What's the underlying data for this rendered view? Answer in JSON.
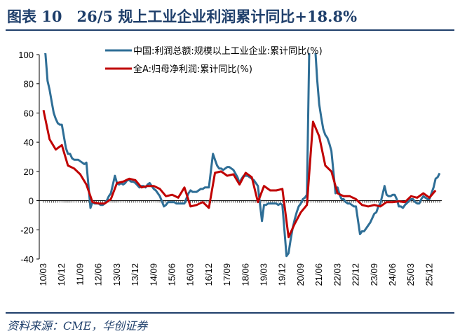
{
  "header": {
    "title": "图表 10　26/5 规上工业企业利润累计同比+18.8%"
  },
  "footer": {
    "source": "资料来源：CME，华创证券"
  },
  "chart_data": {
    "type": "line",
    "ylim": [
      -40,
      100
    ],
    "yticks": [
      -40,
      -20,
      0,
      20,
      40,
      60,
      80,
      100
    ],
    "grid": false,
    "legend_position": "top-center",
    "x_tick_labels": [
      "10/03",
      "10/12",
      "11/09",
      "12/06",
      "13/03",
      "13/12",
      "14/09",
      "15/06",
      "16/03",
      "16/12",
      "17/09",
      "18/06",
      "19/03",
      "19/12",
      "20/09",
      "21/06",
      "22/03",
      "22/12",
      "23/09",
      "24/06",
      "25/03",
      "25/12"
    ],
    "series": [
      {
        "name": "中国:利润总额:规模以上工业企业:累计同比(%)",
        "color": "#2e6e96",
        "points": [
          [
            "2010-03",
            110
          ],
          [
            "2010-04",
            100
          ],
          [
            "2010-05",
            82
          ],
          [
            "2010-06",
            76
          ],
          [
            "2010-07",
            68
          ],
          [
            "2010-08",
            60
          ],
          [
            "2010-09",
            56
          ],
          [
            "2010-10",
            53
          ],
          [
            "2010-11",
            52
          ],
          [
            "2010-12",
            52
          ],
          [
            "2011-02",
            36
          ],
          [
            "2011-03",
            32
          ],
          [
            "2011-04",
            32
          ],
          [
            "2011-05",
            29
          ],
          [
            "2011-06",
            28
          ],
          [
            "2011-07",
            28
          ],
          [
            "2011-08",
            28
          ],
          [
            "2011-09",
            27
          ],
          [
            "2011-10",
            26
          ],
          [
            "2011-11",
            25
          ],
          [
            "2011-12",
            26
          ],
          [
            "2012-02",
            -5
          ],
          [
            "2012-03",
            -1
          ],
          [
            "2012-04",
            -2
          ],
          [
            "2012-05",
            -2
          ],
          [
            "2012-06",
            -2
          ],
          [
            "2012-07",
            -3
          ],
          [
            "2012-08",
            -3
          ],
          [
            "2012-09",
            -2
          ],
          [
            "2012-10",
            0
          ],
          [
            "2012-11",
            3
          ],
          [
            "2012-12",
            5
          ],
          [
            "2013-02",
            17
          ],
          [
            "2013-03",
            12
          ],
          [
            "2013-04",
            11
          ],
          [
            "2013-05",
            12
          ],
          [
            "2013-06",
            11
          ],
          [
            "2013-07",
            12
          ],
          [
            "2013-08",
            14
          ],
          [
            "2013-09",
            14
          ],
          [
            "2013-10",
            13
          ],
          [
            "2013-11",
            13
          ],
          [
            "2013-12",
            12
          ],
          [
            "2014-02",
            9
          ],
          [
            "2014-03",
            10
          ],
          [
            "2014-04",
            10
          ],
          [
            "2014-05",
            9
          ],
          [
            "2014-06",
            11
          ],
          [
            "2014-07",
            12
          ],
          [
            "2014-08",
            10
          ],
          [
            "2014-09",
            8
          ],
          [
            "2014-10",
            7
          ],
          [
            "2014-11",
            5
          ],
          [
            "2014-12",
            3
          ],
          [
            "2015-02",
            -4
          ],
          [
            "2015-03",
            -3
          ],
          [
            "2015-04",
            -1
          ],
          [
            "2015-05",
            -1
          ],
          [
            "2015-06",
            -1
          ],
          [
            "2015-07",
            -1
          ],
          [
            "2015-08",
            -2
          ],
          [
            "2015-09",
            -2
          ],
          [
            "2015-10",
            -2
          ],
          [
            "2015-11",
            -2
          ],
          [
            "2015-12",
            -2
          ],
          [
            "2016-02",
            5
          ],
          [
            "2016-03",
            7
          ],
          [
            "2016-04",
            6
          ],
          [
            "2016-05",
            6
          ],
          [
            "2016-06",
            6
          ],
          [
            "2016-07",
            7
          ],
          [
            "2016-08",
            8
          ],
          [
            "2016-09",
            8
          ],
          [
            "2016-10",
            9
          ],
          [
            "2016-11",
            9
          ],
          [
            "2016-12",
            9
          ],
          [
            "2017-02",
            32
          ],
          [
            "2017-03",
            28
          ],
          [
            "2017-04",
            24
          ],
          [
            "2017-05",
            22
          ],
          [
            "2017-06",
            22
          ],
          [
            "2017-07",
            21
          ],
          [
            "2017-08",
            22
          ],
          [
            "2017-09",
            23
          ],
          [
            "2017-10",
            23
          ],
          [
            "2017-11",
            22
          ],
          [
            "2017-12",
            21
          ],
          [
            "2018-02",
            16
          ],
          [
            "2018-03",
            12
          ],
          [
            "2018-04",
            15
          ],
          [
            "2018-05",
            17
          ],
          [
            "2018-06",
            17
          ],
          [
            "2018-07",
            17
          ],
          [
            "2018-08",
            16
          ],
          [
            "2018-09",
            15
          ],
          [
            "2018-10",
            14
          ],
          [
            "2018-11",
            12
          ],
          [
            "2018-12",
            10
          ],
          [
            "2019-02",
            -14
          ],
          [
            "2019-03",
            -3
          ],
          [
            "2019-04",
            -3
          ],
          [
            "2019-05",
            -2
          ],
          [
            "2019-06",
            -2
          ],
          [
            "2019-07",
            -2
          ],
          [
            "2019-08",
            -2
          ],
          [
            "2019-09",
            -2
          ],
          [
            "2019-10",
            -3
          ],
          [
            "2019-11",
            -2
          ],
          [
            "2019-12",
            -3
          ],
          [
            "2020-02",
            -38
          ],
          [
            "2020-03",
            -36
          ],
          [
            "2020-04",
            -27
          ],
          [
            "2020-05",
            -19
          ],
          [
            "2020-06",
            -13
          ],
          [
            "2020-07",
            -8
          ],
          [
            "2020-08",
            -4
          ],
          [
            "2020-09",
            -2
          ],
          [
            "2020-10",
            1
          ],
          [
            "2020-11",
            2
          ],
          [
            "2020-12",
            4
          ],
          [
            "2021-02",
            178
          ],
          [
            "2021-03",
            137
          ],
          [
            "2021-04",
            106
          ],
          [
            "2021-05",
            83
          ],
          [
            "2021-06",
            66
          ],
          [
            "2021-07",
            57
          ],
          [
            "2021-08",
            49
          ],
          [
            "2021-09",
            45
          ],
          [
            "2021-10",
            43
          ],
          [
            "2021-11",
            39
          ],
          [
            "2021-12",
            34
          ],
          [
            "2022-02",
            5
          ],
          [
            "2022-03",
            9
          ],
          [
            "2022-04",
            4
          ],
          [
            "2022-05",
            1
          ],
          [
            "2022-06",
            1
          ],
          [
            "2022-07",
            -1
          ],
          [
            "2022-08",
            -2
          ],
          [
            "2022-09",
            -2
          ],
          [
            "2022-10",
            -3
          ],
          [
            "2022-11",
            -4
          ],
          [
            "2022-12",
            -4
          ],
          [
            "2023-02",
            -23
          ],
          [
            "2023-03",
            -21
          ],
          [
            "2023-04",
            -21
          ],
          [
            "2023-05",
            -19
          ],
          [
            "2023-06",
            -17
          ],
          [
            "2023-07",
            -15
          ],
          [
            "2023-08",
            -12
          ],
          [
            "2023-09",
            -9
          ],
          [
            "2023-10",
            -8
          ],
          [
            "2023-11",
            -4
          ],
          [
            "2023-12",
            -2
          ],
          [
            "2024-02",
            10
          ],
          [
            "2024-03",
            4
          ],
          [
            "2024-04",
            3
          ],
          [
            "2024-05",
            3
          ],
          [
            "2024-06",
            4
          ],
          [
            "2024-07",
            4
          ],
          [
            "2024-08",
            1
          ],
          [
            "2024-09",
            -4
          ],
          [
            "2024-10",
            -4
          ],
          [
            "2024-11",
            -5
          ],
          [
            "2024-12",
            -3
          ],
          [
            "2025-02",
            -0.3
          ],
          [
            "2025-03",
            1
          ],
          [
            "2025-04",
            1
          ],
          [
            "2025-05",
            -1
          ],
          [
            "2025-06",
            -2
          ],
          [
            "2025-07",
            -2
          ],
          [
            "2025-08",
            1
          ],
          [
            "2025-09",
            3
          ],
          [
            "2025-10",
            2
          ],
          [
            "2025-11",
            1
          ],
          [
            "2025-12",
            1
          ],
          [
            "2026-02",
            9
          ],
          [
            "2026-03",
            15
          ],
          [
            "2026-04",
            16
          ],
          [
            "2026-05",
            18.8
          ]
        ]
      },
      {
        "name": "全A:归母净利润:累计同比(%)",
        "color": "#c00000",
        "points": [
          [
            "2010-03",
            62
          ],
          [
            "2010-06",
            42
          ],
          [
            "2010-09",
            35
          ],
          [
            "2010-12",
            38
          ],
          [
            "2011-03",
            24
          ],
          [
            "2011-06",
            22
          ],
          [
            "2011-09",
            18
          ],
          [
            "2011-12",
            11
          ],
          [
            "2012-03",
            -1
          ],
          [
            "2012-06",
            -2
          ],
          [
            "2012-09",
            -2
          ],
          [
            "2012-12",
            1
          ],
          [
            "2013-03",
            12
          ],
          [
            "2013-06",
            13
          ],
          [
            "2013-09",
            15
          ],
          [
            "2013-12",
            14
          ],
          [
            "2014-03",
            9
          ],
          [
            "2014-06",
            10
          ],
          [
            "2014-09",
            10
          ],
          [
            "2014-12",
            8
          ],
          [
            "2015-03",
            3
          ],
          [
            "2015-06",
            4
          ],
          [
            "2015-09",
            2
          ],
          [
            "2015-12",
            9
          ],
          [
            "2016-03",
            -4
          ],
          [
            "2016-06",
            -3
          ],
          [
            "2016-09",
            -1
          ],
          [
            "2016-12",
            -5
          ],
          [
            "2017-03",
            19
          ],
          [
            "2017-06",
            20
          ],
          [
            "2017-09",
            17
          ],
          [
            "2017-12",
            18
          ],
          [
            "2018-03",
            11
          ],
          [
            "2018-06",
            19
          ],
          [
            "2018-09",
            16
          ],
          [
            "2018-12",
            -1
          ],
          [
            "2019-03",
            10
          ],
          [
            "2019-06",
            7
          ],
          [
            "2019-09",
            7
          ],
          [
            "2019-12",
            8
          ],
          [
            "2020-03",
            -25
          ],
          [
            "2020-06",
            -16
          ],
          [
            "2020-09",
            -8
          ],
          [
            "2020-12",
            -3
          ],
          [
            "2021-03",
            54
          ],
          [
            "2021-06",
            44
          ],
          [
            "2021-09",
            24
          ],
          [
            "2021-12",
            20
          ],
          [
            "2022-03",
            5
          ],
          [
            "2022-06",
            3
          ],
          [
            "2022-09",
            3
          ],
          [
            "2022-12",
            1
          ],
          [
            "2023-03",
            -3
          ],
          [
            "2023-06",
            -4
          ],
          [
            "2023-09",
            -3
          ],
          [
            "2023-12",
            -4
          ],
          [
            "2024-03",
            -1
          ],
          [
            "2024-06",
            -1
          ],
          [
            "2024-09",
            -0.5
          ],
          [
            "2024-12",
            -1
          ],
          [
            "2025-03",
            3
          ],
          [
            "2025-06",
            2
          ],
          [
            "2025-09",
            5
          ],
          [
            "2025-12",
            2
          ],
          [
            "2026-03",
            7
          ]
        ]
      }
    ]
  }
}
